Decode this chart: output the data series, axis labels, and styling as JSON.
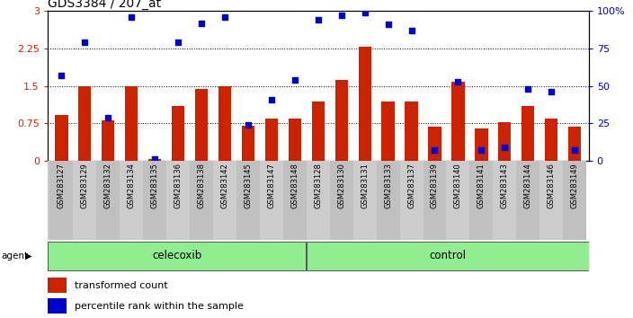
{
  "title": "GDS3384 / 207_at",
  "samples": [
    "GSM283127",
    "GSM283129",
    "GSM283132",
    "GSM283134",
    "GSM283135",
    "GSM283136",
    "GSM283138",
    "GSM283142",
    "GSM283145",
    "GSM283147",
    "GSM283148",
    "GSM283128",
    "GSM283130",
    "GSM283131",
    "GSM283133",
    "GSM283137",
    "GSM283139",
    "GSM283140",
    "GSM283141",
    "GSM283143",
    "GSM283144",
    "GSM283146",
    "GSM283149"
  ],
  "red_values": [
    0.92,
    1.5,
    0.8,
    1.5,
    0.03,
    1.1,
    1.43,
    1.5,
    0.7,
    0.85,
    0.85,
    1.18,
    1.62,
    2.28,
    1.18,
    1.18,
    0.68,
    1.58,
    0.65,
    0.78,
    1.1,
    0.85,
    0.68
  ],
  "blue_pct": [
    57,
    79,
    29,
    96,
    1,
    79,
    92,
    96,
    24,
    41,
    54,
    94,
    97,
    99,
    91,
    87,
    7,
    53,
    7,
    9,
    48,
    46,
    7
  ],
  "group_labels": [
    "celecoxib",
    "control"
  ],
  "group_sizes": [
    11,
    12
  ],
  "bar_color": "#cc2200",
  "dot_color": "#0000cc",
  "ylim_left": [
    0,
    3
  ],
  "ylim_right": [
    0,
    100
  ],
  "yticks_left": [
    0,
    0.75,
    1.5,
    2.25,
    3
  ],
  "yticks_right": [
    0,
    25,
    50,
    75,
    100
  ],
  "hlines": [
    0.75,
    1.5,
    2.25
  ],
  "legend_labels": [
    "transformed count",
    "percentile rank within the sample"
  ],
  "agent_label": "agent"
}
